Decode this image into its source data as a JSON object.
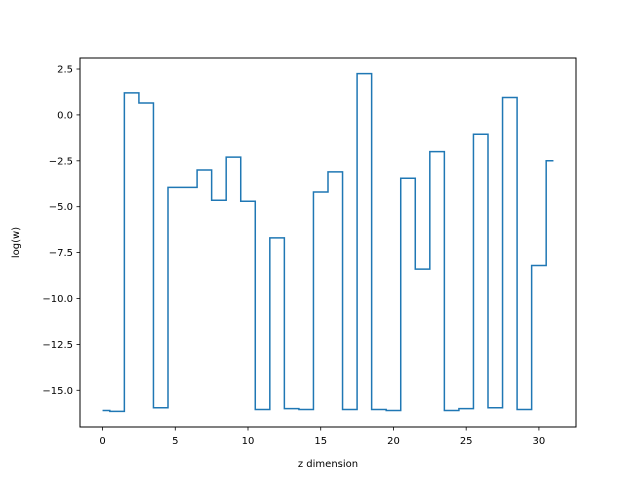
{
  "chart_data": {
    "type": "line",
    "drawstyle": "steps-mid",
    "title": "",
    "xlabel": "z dimension",
    "ylabel": "log(w)",
    "xlim": [
      -1.55,
      32.55
    ],
    "ylim": [
      -17.0,
      3.1
    ],
    "xticks": [
      0,
      5,
      10,
      15,
      20,
      25,
      30
    ],
    "xtick_labels": [
      "0",
      "5",
      "10",
      "15",
      "20",
      "25",
      "30"
    ],
    "yticks": [
      2.5,
      0.0,
      -2.5,
      -5.0,
      -7.5,
      -10.0,
      -12.5,
      -15.0
    ],
    "ytick_labels": [
      "2.5",
      "0.0",
      "−2.5",
      "−5.0",
      "−7.5",
      "−10.0",
      "−12.5",
      "−15.0"
    ],
    "grid": false,
    "line_color": "#1f77b4",
    "series": [
      {
        "x": [
          0,
          1,
          2,
          3,
          4,
          5,
          6,
          7,
          8,
          9,
          10,
          11,
          12,
          13,
          14,
          15,
          16,
          17,
          18,
          19,
          20,
          21,
          22,
          23,
          24,
          25,
          26,
          27,
          28,
          29,
          30,
          31
        ],
        "values": [
          -16.1,
          -16.15,
          1.2,
          0.65,
          -15.95,
          -3.95,
          -3.95,
          -3.0,
          -4.65,
          -2.3,
          -4.7,
          -16.05,
          -6.7,
          -16.0,
          -16.05,
          -4.2,
          -3.1,
          -16.05,
          2.25,
          -16.05,
          -16.1,
          -3.45,
          -8.4,
          -2.0,
          -16.1,
          -16.0,
          -1.05,
          -15.95,
          0.95,
          -16.05,
          -8.2,
          -2.5
        ]
      }
    ]
  }
}
